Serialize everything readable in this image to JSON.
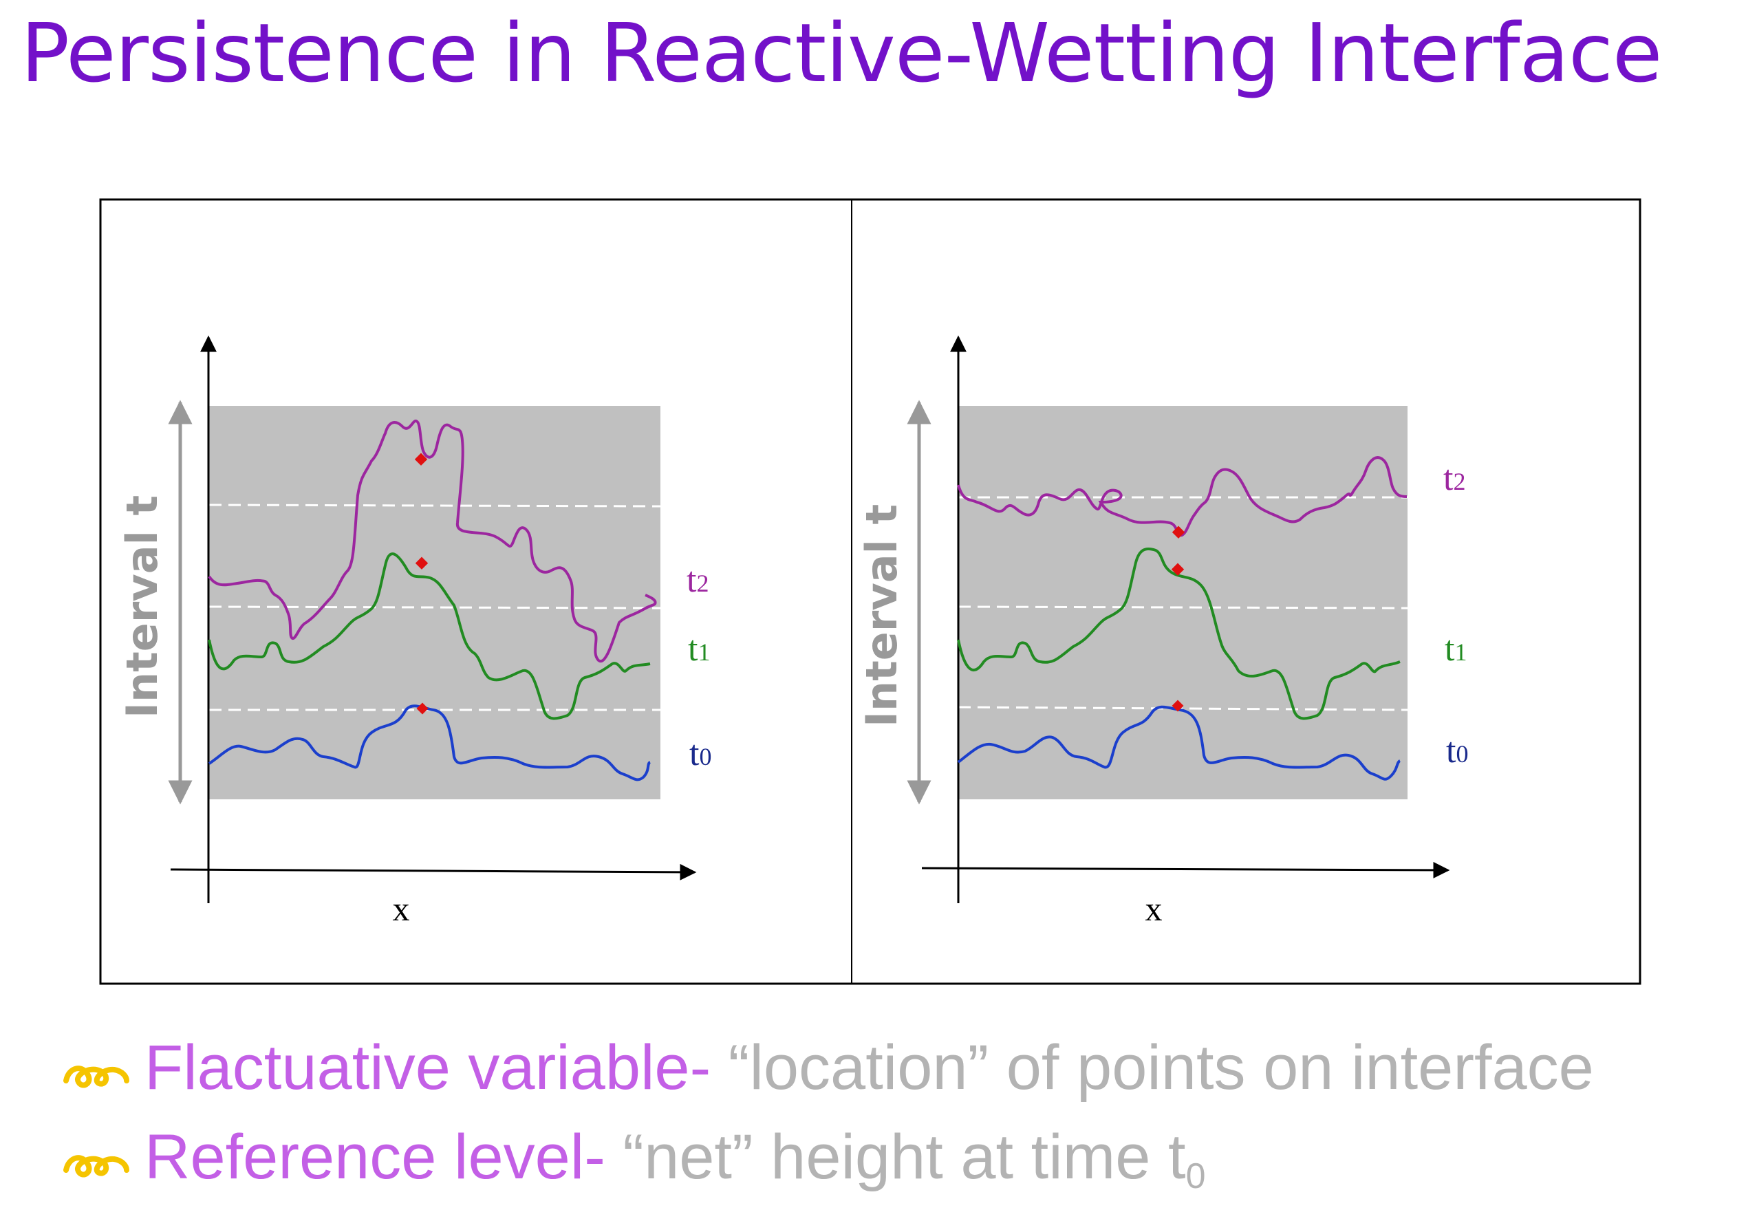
{
  "title": "Persistence in Reactive-Wetting Interface",
  "panels": [
    {
      "y_axis_label": "Interval t",
      "x_axis_label": "x",
      "curve_labels": {
        "t2": "t",
        "t2_sub": "2",
        "t1": "t",
        "t1_sub": "1",
        "t0": "t",
        "t0_sub": "0"
      }
    },
    {
      "y_axis_label": "Interval t",
      "x_axis_label": "x",
      "curve_labels": {
        "t2": "t",
        "t2_sub": "2",
        "t1": "t",
        "t1_sub": "1",
        "t0": "t",
        "t0_sub": "0"
      }
    }
  ],
  "colors": {
    "title": "#7311c9",
    "t2_curve": "#9c269f",
    "t1_curve": "#228b22",
    "t0_curve": "#1b3fcc",
    "marker": "#e01010",
    "shade": "#c0c0c0",
    "bullet_icon": "#f5c400"
  },
  "bullets": [
    {
      "term": "Flactuative variable-",
      "desc": " “location” of points on interface",
      "sub": ""
    },
    {
      "term": "Reference level-",
      "desc": " “net” height at time t",
      "sub": "0"
    }
  ]
}
